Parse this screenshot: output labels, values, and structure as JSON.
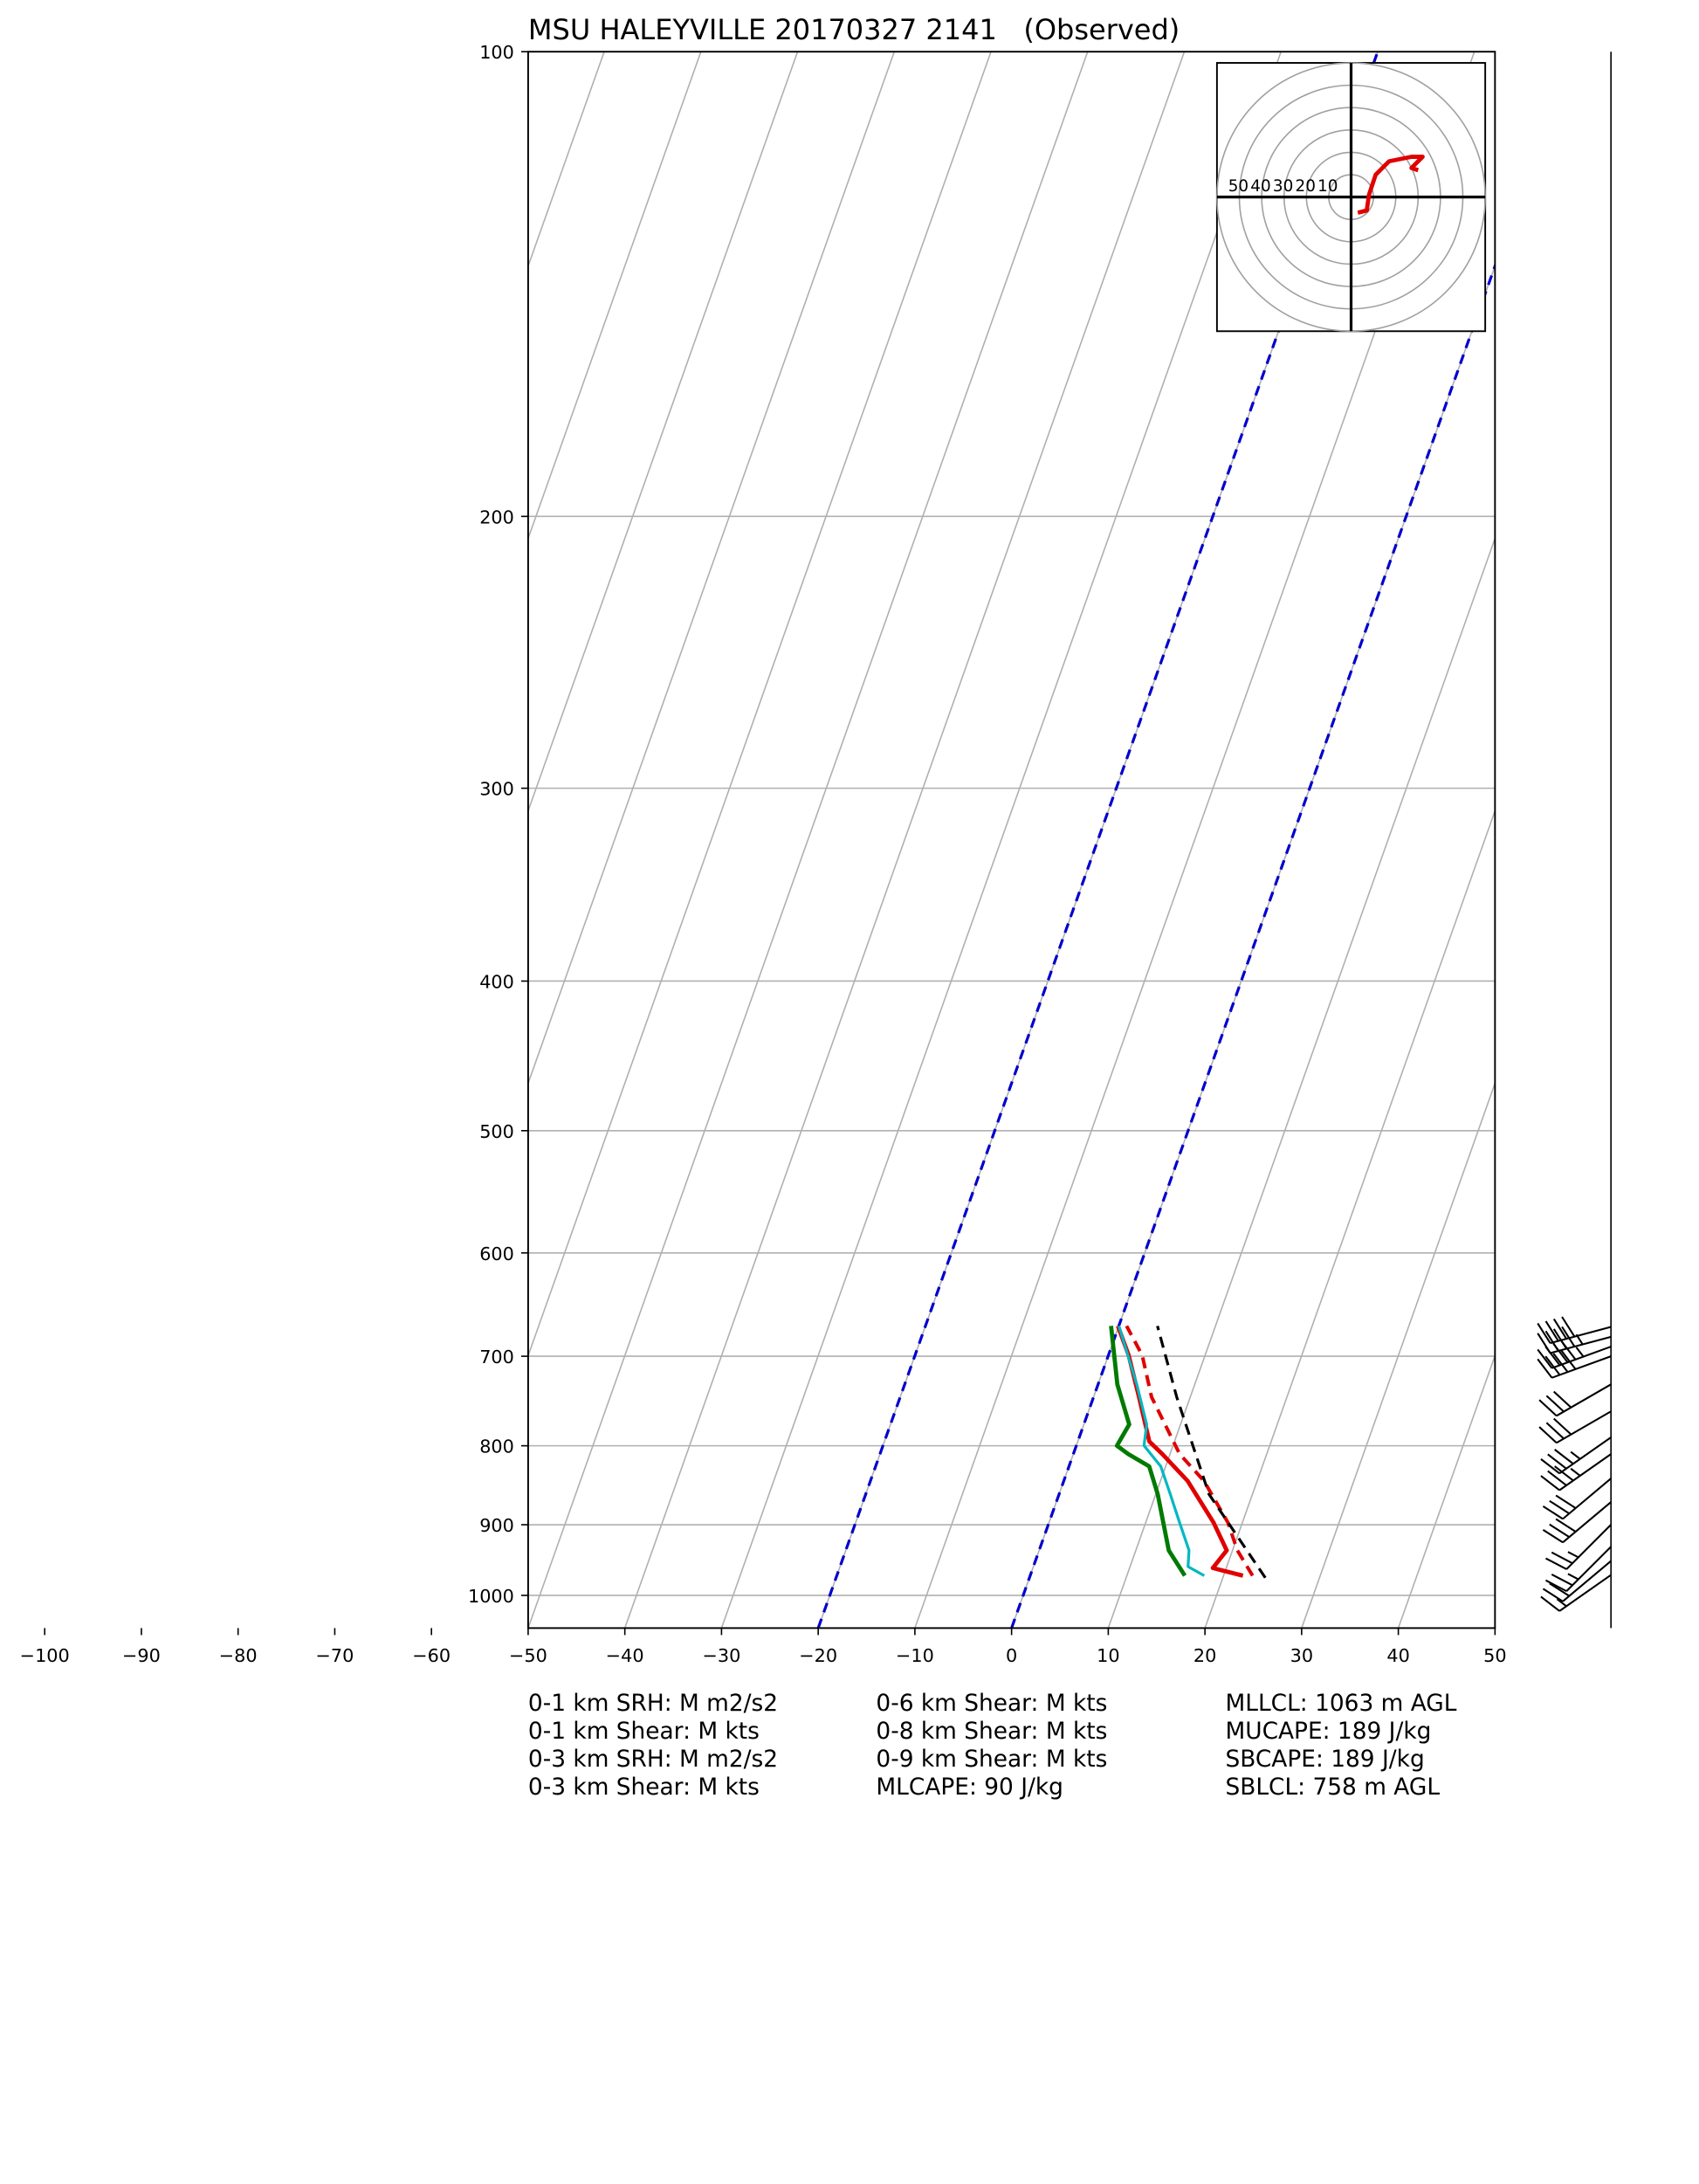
{
  "chart_data": {
    "type": "skewt",
    "title": "MSU HALEYVILLE 20170327 2141   (Observed)",
    "xlim": [
      -50,
      50
    ],
    "ylim": [
      1050,
      100
    ],
    "log_y": true,
    "grid": true,
    "xticks": [
      {
        "value": -100,
        "label": "−100"
      },
      {
        "value": -90,
        "label": "−90"
      },
      {
        "value": -80,
        "label": "−80"
      },
      {
        "value": -70,
        "label": "−70"
      },
      {
        "value": -60,
        "label": "−60"
      },
      {
        "value": -50,
        "label": "−50"
      },
      {
        "value": -40,
        "label": "−40"
      },
      {
        "value": -30,
        "label": "−30"
      },
      {
        "value": -20,
        "label": "−20"
      },
      {
        "value": -10,
        "label": "−10"
      },
      0,
      10,
      20,
      30,
      40,
      50
    ],
    "yticks": [
      100,
      200,
      300,
      400,
      500,
      600,
      700,
      800,
      900,
      1000
    ],
    "isotherms": [
      -100,
      -90,
      -80,
      -70,
      -60,
      -50,
      -40,
      -30,
      -20,
      -10,
      0,
      10,
      20,
      30,
      40,
      50
    ],
    "isotherm_color": "#b0b0b0",
    "dashed_isotherms": [
      -20,
      0
    ],
    "dashed_isotherm_color": "#0000cc",
    "series": [
      {
        "color": "#e00000",
        "dash": false,
        "width": 3,
        "pressure": [
          971,
          960,
          935,
          897,
          843,
          810,
          795,
          744,
          699,
          669
        ],
        "values": [
          22.0,
          18.6,
          19.4,
          17.0,
          12.8,
          9.2,
          7.4,
          4.7,
          2.1,
          -0.1
        ]
      },
      {
        "color": "#e00000",
        "dash": true,
        "width": 2.5,
        "pressure": [
          971,
          935,
          897,
          843,
          810,
          744,
          699,
          669
        ],
        "values": [
          23.0,
          20.5,
          18.5,
          14.5,
          11.0,
          6.0,
          3.5,
          0.8
        ]
      },
      {
        "color": "#00b8c0",
        "dash": false,
        "width": 2,
        "pressure": [
          971,
          958,
          935,
          897,
          860,
          825,
          800,
          775,
          730,
          669
        ],
        "values": [
          18.0,
          16.0,
          15.5,
          13.5,
          11.5,
          9.5,
          7.0,
          6.5,
          4.0,
          0.0
        ]
      },
      {
        "color": "#007a00",
        "dash": false,
        "width": 3,
        "pressure": [
          971,
          935,
          860,
          825,
          810,
          800,
          775,
          730,
          669
        ],
        "values": [
          16.0,
          13.4,
          10.2,
          8.3,
          5.7,
          4.2,
          4.7,
          2.0,
          -0.8
        ]
      },
      {
        "color": "#000000",
        "dash": true,
        "width": 2,
        "pressure": [
          974,
          860,
          744,
          669
        ],
        "values": [
          24.4,
          15.5,
          8.6,
          4.0
        ]
      }
    ],
    "wind_barbs": {
      "pressure": [
        670,
        680,
        690,
        700,
        730,
        760,
        790,
        810,
        840,
        870,
        900,
        930,
        950,
        970
      ],
      "speed": [
        40,
        45,
        45,
        40,
        30,
        30,
        35,
        35,
        30,
        30,
        25,
        25,
        20,
        15
      ],
      "direction": [
        255,
        255,
        250,
        250,
        240,
        240,
        235,
        235,
        230,
        230,
        225,
        225,
        230,
        235
      ]
    },
    "hodograph": {
      "rings": [
        10,
        20,
        30,
        40,
        50,
        60
      ],
      "ring_labels": [
        50,
        40,
        30,
        20,
        10
      ],
      "u": [
        3,
        7,
        8,
        11,
        17,
        27,
        32,
        27,
        30
      ],
      "v": [
        -7,
        -6,
        1,
        10,
        16,
        18,
        18,
        13,
        12
      ],
      "color": "#e00000"
    },
    "info": [
      [
        "0-1 km SRH: M m2/s2",
        "0-1 km Shear: M kts",
        "0-3 km SRH: M m2/s2",
        "0-3 km Shear: M kts"
      ],
      [
        "0-6 km Shear: M kts",
        "0-8 km Shear: M kts",
        "0-9 km Shear: M kts",
        "MLCAPE: 90 J/kg"
      ],
      [
        "MLLCL: 1063 m AGL",
        "MUCAPE: 189 J/kg",
        "SBCAPE: 189 J/kg",
        "SBLCL: 758 m AGL"
      ]
    ]
  }
}
